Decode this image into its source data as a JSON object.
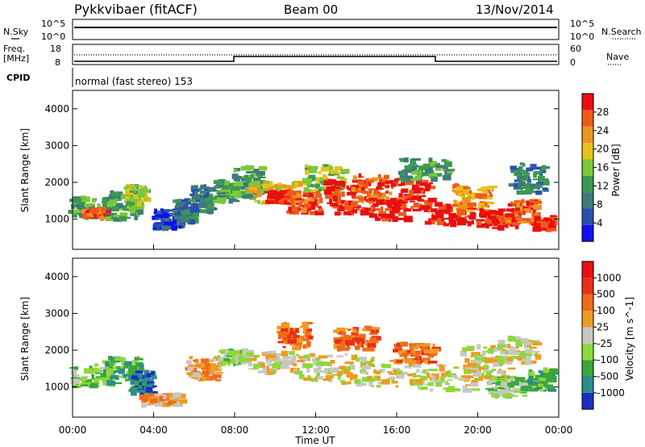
{
  "header": {
    "station": "Pykkvibaer (fitACF)",
    "beam": "Beam 00",
    "date": "13/Nov/2014"
  },
  "status": {
    "nsky_label": "N.Sky",
    "nsky_hi": "10^5",
    "nsky_lo": "10^0",
    "nsearch_label": "N.Search",
    "nsearch_hi": "10^5",
    "nsearch_lo": "10^0",
    "freq_label1": "Freq.",
    "freq_label2": "[MHz]",
    "freq_hi": "18",
    "freq_lo": "8",
    "nave_label": "Nave",
    "nave_hi": "60",
    "nave_lo": "0",
    "cpid_label": "CPID",
    "cpid_text": "normal (fast stereo) 153"
  },
  "chart_data": [
    {
      "type": "heatmap",
      "name": "power",
      "ylabel": "Slant Range [km]",
      "xlabel": "Time UT",
      "yticks": [
        "1000",
        "2000",
        "3000",
        "4000"
      ],
      "ylim": [
        180,
        4500
      ],
      "colorbar_label": "Power [dB]",
      "colorbar_ticks": [
        "4",
        "8",
        "12",
        "16",
        "20",
        "24",
        "28"
      ],
      "colors": [
        "#1010ee",
        "#2a4fb0",
        "#3f7a7a",
        "#3a9a50",
        "#7ac83a",
        "#e6c21a",
        "#ef9320",
        "#ef5a1a",
        "#e81010"
      ],
      "blobs": [
        {
          "t": 1.0,
          "r": 1300,
          "dt": 1.0,
          "dr": 280,
          "v": 3
        },
        {
          "t": 1.2,
          "r": 1150,
          "dt": 0.6,
          "dr": 120,
          "v": 7
        },
        {
          "t": 2.6,
          "r": 1350,
          "dt": 0.8,
          "dr": 380,
          "v": 3
        },
        {
          "t": 3.2,
          "r": 1600,
          "dt": 0.5,
          "dr": 300,
          "v": 4
        },
        {
          "t": 4.8,
          "r": 1000,
          "dt": 0.7,
          "dr": 250,
          "v": 1
        },
        {
          "t": 5.6,
          "r": 1200,
          "dt": 0.5,
          "dr": 300,
          "v": 2
        },
        {
          "t": 6.5,
          "r": 1550,
          "dt": 0.6,
          "dr": 350,
          "v": 2
        },
        {
          "t": 7.6,
          "r": 1750,
          "dt": 0.5,
          "dr": 280,
          "v": 3
        },
        {
          "t": 8.7,
          "r": 2000,
          "dt": 0.7,
          "dr": 400,
          "v": 3
        },
        {
          "t": 10.0,
          "r": 1700,
          "dt": 1.2,
          "dr": 300,
          "v": 5
        },
        {
          "t": 10.3,
          "r": 1600,
          "dt": 0.6,
          "dr": 150,
          "v": 8
        },
        {
          "t": 11.5,
          "r": 1450,
          "dt": 0.8,
          "dr": 300,
          "v": 7
        },
        {
          "t": 12.5,
          "r": 2100,
          "dt": 1.0,
          "dr": 350,
          "v": 4
        },
        {
          "t": 13.5,
          "r": 1600,
          "dt": 0.9,
          "dr": 450,
          "v": 8
        },
        {
          "t": 14.8,
          "r": 1800,
          "dt": 1.0,
          "dr": 400,
          "v": 7
        },
        {
          "t": 15.5,
          "r": 1250,
          "dt": 1.1,
          "dr": 300,
          "v": 8
        },
        {
          "t": 16.8,
          "r": 1650,
          "dt": 1.0,
          "dr": 450,
          "v": 8
        },
        {
          "t": 17.5,
          "r": 2350,
          "dt": 1.2,
          "dr": 300,
          "v": 3
        },
        {
          "t": 18.5,
          "r": 1150,
          "dt": 1.3,
          "dr": 320,
          "v": 8
        },
        {
          "t": 19.8,
          "r": 1550,
          "dt": 1.0,
          "dr": 400,
          "v": 6
        },
        {
          "t": 21.0,
          "r": 1000,
          "dt": 1.0,
          "dr": 250,
          "v": 8
        },
        {
          "t": 22.2,
          "r": 1200,
          "dt": 0.8,
          "dr": 300,
          "v": 7
        },
        {
          "t": 23.3,
          "r": 900,
          "dt": 0.5,
          "dr": 200,
          "v": 8
        },
        {
          "t": 22.5,
          "r": 2100,
          "dt": 0.9,
          "dr": 400,
          "v": 2
        }
      ]
    },
    {
      "type": "heatmap",
      "name": "velocity",
      "ylabel": "Slant Range [km]",
      "xlabel": "Time UT",
      "yticks": [
        "1000",
        "2000",
        "3000",
        "4000"
      ],
      "ylim": [
        180,
        4500
      ],
      "colorbar_label": "Velocity [m s^-1]",
      "colorbar_ticks": [
        "1000",
        "500",
        "100",
        "25",
        "-25",
        "-100",
        "-500",
        "-1000"
      ],
      "colors": [
        "#1a2ec4",
        "#2a8c8c",
        "#3aa83a",
        "#8ed83a",
        "#c8c8c0",
        "#ef9a20",
        "#ef6a1a",
        "#e83018",
        "#e81010"
      ],
      "blobs": [
        {
          "t": 1.0,
          "r": 1300,
          "dt": 1.0,
          "dr": 300,
          "v": 3
        },
        {
          "t": 2.5,
          "r": 1450,
          "dt": 0.9,
          "dr": 350,
          "v": 2
        },
        {
          "t": 3.5,
          "r": 1100,
          "dt": 0.6,
          "dr": 300,
          "v": 1
        },
        {
          "t": 4.5,
          "r": 650,
          "dt": 1.0,
          "dr": 150,
          "v": 5
        },
        {
          "t": 6.5,
          "r": 1500,
          "dt": 0.8,
          "dr": 300,
          "v": 5
        },
        {
          "t": 8.0,
          "r": 1800,
          "dt": 0.8,
          "dr": 200,
          "v": 3
        },
        {
          "t": 9.8,
          "r": 1650,
          "dt": 1.2,
          "dr": 300,
          "v": 4
        },
        {
          "t": 11.0,
          "r": 2400,
          "dt": 0.8,
          "dr": 350,
          "v": 6
        },
        {
          "t": 12.5,
          "r": 1500,
          "dt": 1.5,
          "dr": 400,
          "v": 4
        },
        {
          "t": 14.0,
          "r": 2300,
          "dt": 1.0,
          "dr": 300,
          "v": 6
        },
        {
          "t": 15.5,
          "r": 1400,
          "dt": 1.6,
          "dr": 400,
          "v": 4
        },
        {
          "t": 17.0,
          "r": 1900,
          "dt": 1.0,
          "dr": 300,
          "v": 6
        },
        {
          "t": 18.5,
          "r": 1250,
          "dt": 1.5,
          "dr": 350,
          "v": 4
        },
        {
          "t": 20.5,
          "r": 1650,
          "dt": 1.2,
          "dr": 450,
          "v": 4
        },
        {
          "t": 21.5,
          "r": 1000,
          "dt": 0.9,
          "dr": 250,
          "v": 3
        },
        {
          "t": 23.2,
          "r": 1200,
          "dt": 0.6,
          "dr": 300,
          "v": 2
        },
        {
          "t": 22.0,
          "r": 2000,
          "dt": 1.0,
          "dr": 350,
          "v": 4
        }
      ]
    }
  ],
  "time_axis": {
    "label": "Time UT",
    "ticks": [
      "00:00",
      "04:00",
      "08:00",
      "12:00",
      "16:00",
      "20:00",
      "00:00"
    ]
  }
}
